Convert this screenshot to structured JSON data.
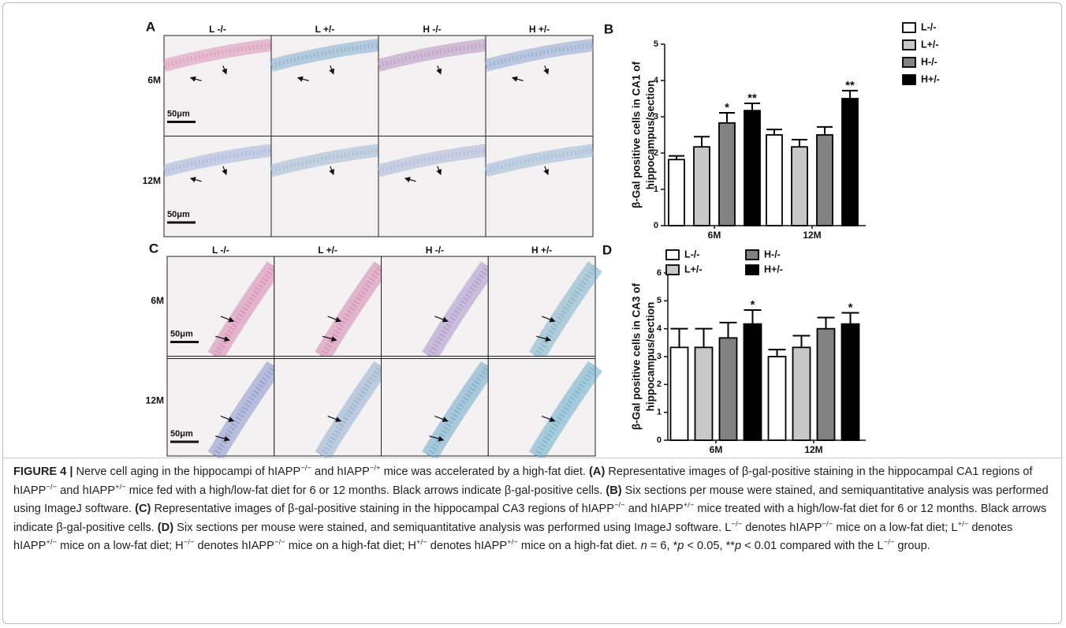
{
  "panel_labels": [
    "A",
    "B",
    "C",
    "D"
  ],
  "micrographs": [
    {
      "columns": [
        "L -/-",
        "L +/-",
        "H -/-",
        "H +/-"
      ],
      "rows": [
        "6M",
        "12M"
      ],
      "scale_bars": [
        "50μm",
        "50μm"
      ]
    },
    {
      "columns": [
        "L -/-",
        "L +/-",
        "H -/-",
        "H +/-"
      ],
      "rows": [
        "6M",
        "12M"
      ],
      "scale_bars": [
        "50μm",
        "50μm"
      ]
    }
  ],
  "chart_data": [
    {
      "type": "bar",
      "ylabel": [
        "β-Gal positive cells in CA1 of",
        "hippocampus/section"
      ],
      "categories": [
        "6M",
        "12M"
      ],
      "ylim": [
        0,
        5
      ],
      "yticks": [
        0,
        1,
        2,
        3,
        4,
        5
      ],
      "legend": "upper-right",
      "legend_columns": 1,
      "series": [
        {
          "name": "L-/-",
          "color": "#ffffff",
          "values": [
            1.82,
            2.5
          ],
          "errors": [
            0.1,
            0.15
          ],
          "significance": [
            null,
            null
          ]
        },
        {
          "name": "L+/-",
          "color": "#c8c8c8",
          "values": [
            2.17,
            2.17
          ],
          "errors": [
            0.28,
            0.2
          ],
          "significance": [
            null,
            null
          ]
        },
        {
          "name": "H-/-",
          "color": "#828282",
          "values": [
            2.83,
            2.5
          ],
          "errors": [
            0.28,
            0.22
          ],
          "significance": [
            "*",
            null
          ]
        },
        {
          "name": "H+/-",
          "color": "#000000",
          "values": [
            3.17,
            3.5
          ],
          "errors": [
            0.2,
            0.22
          ],
          "significance": [
            "**",
            "**"
          ]
        }
      ]
    },
    {
      "type": "bar",
      "ylabel": [
        "β-Gal positive cells in CA3 of",
        "hippocampus/section"
      ],
      "categories": [
        "6M",
        "12M"
      ],
      "ylim": [
        0,
        6
      ],
      "yticks": [
        0,
        1,
        2,
        3,
        4,
        5,
        6
      ],
      "legend": "upper-left",
      "legend_columns": 2,
      "series": [
        {
          "name": "L-/-",
          "color": "#ffffff",
          "values": [
            3.33,
            3.0
          ],
          "errors": [
            0.67,
            0.25
          ],
          "significance": [
            null,
            null
          ]
        },
        {
          "name": "L+/-",
          "color": "#c8c8c8",
          "values": [
            3.33,
            3.33
          ],
          "errors": [
            0.67,
            0.42
          ],
          "significance": [
            null,
            null
          ]
        },
        {
          "name": "H-/-",
          "color": "#828282",
          "values": [
            3.67,
            4.0
          ],
          "errors": [
            0.55,
            0.4
          ],
          "significance": [
            null,
            null
          ]
        },
        {
          "name": "H+/-",
          "color": "#000000",
          "values": [
            4.17,
            4.17
          ],
          "errors": [
            0.5,
            0.4
          ],
          "significance": [
            "*",
            "*"
          ]
        }
      ]
    }
  ],
  "caption": [
    "FIGURE 4 | ",
    "Nerve cell aging in the hippocampi of hIAPP",
    "−/−",
    " and hIAPP",
    "−/+",
    " mice was accelerated by a high-fat diet. ",
    "(A)",
    " Representative images of β-gal-positive staining in the hippocampal CA1 regions of hIAPP",
    "−/−",
    " and hIAPP",
    "+/−",
    " mice fed with a high/low-fat diet for 6 or 12 months. Black arrows indicate β-gal-positive cells. ",
    "(B)",
    " Six sections per mouse were stained, and semiquantitative analysis was performed using ImageJ software. ",
    "(C)",
    " Representative images of β-gal-positive staining in the hippocampal CA3 regions of hIAPP",
    "−/−",
    " and hIAPP",
    "+/−",
    " mice treated with a high/low-fat diet for 6 or 12 months. Black arrows indicate β-gal-positive cells. ",
    "(D)",
    " Six sections per mouse were stained, and semiquantitative analysis was performed using ImageJ software. L",
    "−/−",
    " denotes hIAPP",
    "−/−",
    " mice on a low-fat diet; L",
    "+/−",
    " denotes hIAPP",
    "+/−",
    " mice on a low-fat diet; H",
    "−/−",
    " denotes hIAPP",
    "−/−",
    " mice on a high-fat diet; H",
    "+/−",
    " denotes hIAPP",
    "+/−",
    " mice on a high-fat diet. ",
    "n",
    " = 6, *",
    "p",
    " < 0.05, **",
    "p",
    " < 0.01 compared with the L",
    "−/−",
    " group."
  ]
}
